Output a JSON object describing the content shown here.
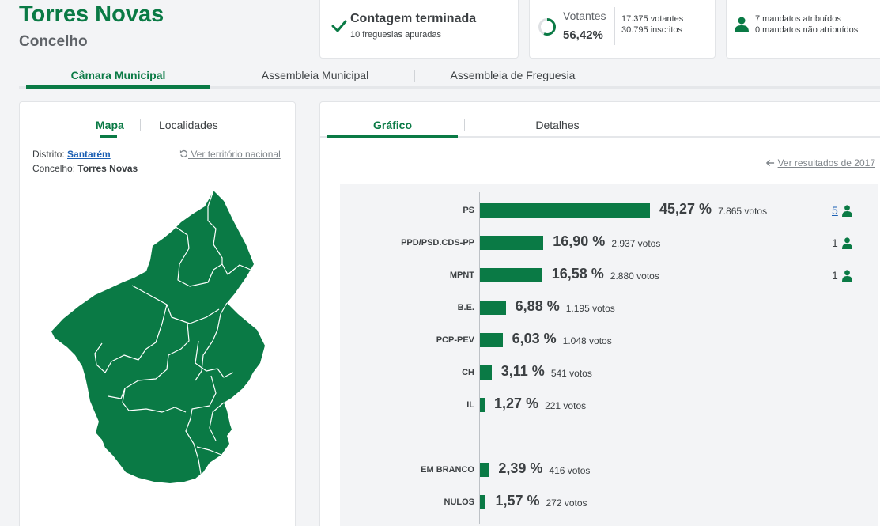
{
  "header": {
    "title": "Torres Novas",
    "subtitle": "Concelho"
  },
  "status": {
    "count_title": "Contagem terminada",
    "count_sub": "10 freguesias apuradas",
    "voters_label": "Votantes",
    "voters_pct": "56,42%",
    "voters_line1": "17.375 votantes",
    "voters_line2": "30.795 inscritos",
    "mandates_line1": "7 mandatos atribuídos",
    "mandates_line2": "0 mandatos não atribuídos"
  },
  "main_tabs": [
    "Câmara Municipal",
    "Assembleia Municipal",
    "Assembleia de Freguesia"
  ],
  "left_tabs": [
    "Mapa",
    "Localidades"
  ],
  "location": {
    "distrito_label": "Distrito:",
    "distrito_value": "Santarém",
    "concelho_label": "Concelho:",
    "concelho_value": "Torres Novas",
    "national_link": "Ver território nacional"
  },
  "right_tabs": [
    "Gráfico",
    "Detalhes"
  ],
  "previous_results_link": "Ver resultados de 2017",
  "colors": {
    "accent": "#0a7a45",
    "link": "#1a5fb4"
  },
  "icons": [
    "check-icon",
    "progress-ring-icon",
    "person-icon",
    "undo-icon",
    "arrow-left-icon"
  ],
  "chart_data": {
    "type": "bar",
    "orientation": "horizontal",
    "categories": [
      "PS",
      "PPD/PSD.CDS-PP",
      "MPNT",
      "B.E.",
      "PCP-PEV",
      "CH",
      "IL",
      "EM BRANCO",
      "NULOS"
    ],
    "values": [
      45.27,
      16.9,
      16.58,
      6.88,
      6.03,
      3.11,
      1.27,
      2.39,
      1.57
    ],
    "pct_labels": [
      "45,27 %",
      "16,90 %",
      "16,58 %",
      "6,88 %",
      "6,03 %",
      "3,11 %",
      "1,27 %",
      "2,39 %",
      "1,57 %"
    ],
    "votes_labels": [
      "7.865 votos",
      "2.937 votos",
      "2.880 votos",
      "1.195 votos",
      "1.048 votos",
      "541 votos",
      "221 votos",
      "416 votos",
      "272 votos"
    ],
    "mandates": [
      "5",
      "1",
      "1",
      "",
      "",
      "",
      "",
      "",
      ""
    ],
    "xlim": [
      0,
      100
    ]
  }
}
